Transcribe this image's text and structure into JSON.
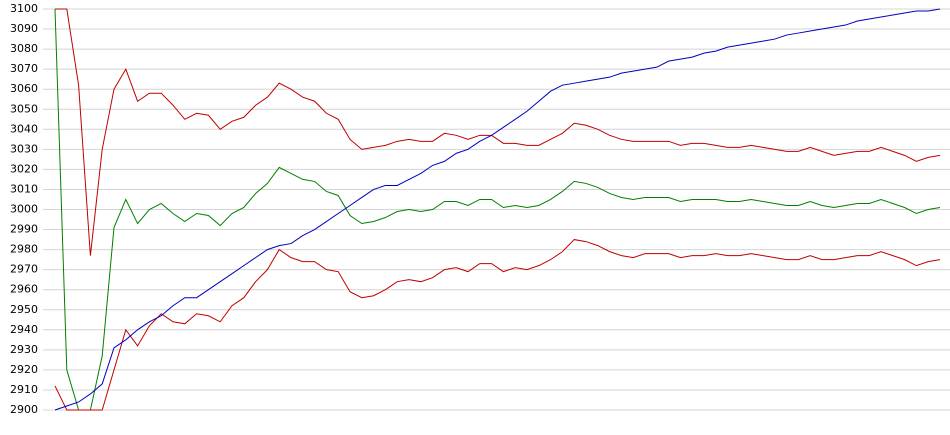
{
  "chart_data": {
    "type": "line",
    "categories": [
      null,
      null,
      null,
      null,
      null,
      null,
      null,
      null,
      null,
      null,
      null,
      null,
      null,
      null,
      null,
      null,
      null,
      null,
      null,
      null,
      null,
      null,
      null,
      null,
      null,
      null,
      null,
      null,
      null,
      null,
      null,
      null,
      null,
      null,
      null,
      null,
      null,
      null,
      null,
      null,
      null,
      null,
      null,
      null,
      null,
      null,
      null,
      null,
      null,
      null,
      null,
      null,
      null,
      null,
      null,
      null,
      null,
      null,
      null,
      null,
      null,
      null,
      null,
      null,
      null,
      null,
      null,
      null,
      null,
      null,
      null,
      null,
      null,
      null,
      null,
      null
    ],
    "series": [
      {
        "color": "#c00000",
        "values": [
          3100,
          3100,
          3062,
          2977,
          3030,
          3060,
          3070,
          3054,
          3058,
          3058,
          3052,
          3045,
          3048,
          3047,
          3040,
          3044,
          3046,
          3052,
          3056,
          3063,
          3060,
          3056,
          3054,
          3048,
          3045,
          3035,
          3030,
          3031,
          3032,
          3034,
          3035,
          3034,
          3034,
          3038,
          3037,
          3035,
          3037,
          3037,
          3033,
          3033,
          3032,
          3032,
          3035,
          3038,
          3043,
          3042,
          3040,
          3037,
          3035,
          3034,
          3034,
          3034,
          3034,
          3032,
          3033,
          3033,
          3032,
          3031,
          3031,
          3032,
          3031,
          3030,
          3029,
          3029,
          3031,
          3029,
          3027,
          3028,
          3029,
          3029,
          3031,
          3029,
          3027,
          3024,
          3026,
          3027
        ]
      },
      {
        "color": "#008000",
        "values": [
          3100,
          2920,
          2900,
          2900,
          2927,
          2991,
          3005,
          2993,
          3000,
          3003,
          2998,
          2994,
          2998,
          2997,
          2992,
          2998,
          3001,
          3008,
          3013,
          3021,
          3018,
          3015,
          3014,
          3009,
          3007,
          2997,
          2993,
          2994,
          2996,
          2999,
          3000,
          2999,
          3000,
          3004,
          3004,
          3002,
          3005,
          3005,
          3001,
          3002,
          3001,
          3002,
          3005,
          3009,
          3014,
          3013,
          3011,
          3008,
          3006,
          3005,
          3006,
          3006,
          3006,
          3004,
          3005,
          3005,
          3005,
          3004,
          3004,
          3005,
          3004,
          3003,
          3002,
          3002,
          3004,
          3002,
          3001,
          3002,
          3003,
          3003,
          3005,
          3003,
          3001,
          2998,
          3000,
          3001
        ]
      },
      {
        "color": "#c00000",
        "values": [
          2912,
          2900,
          2900,
          2900,
          2900,
          2920,
          2940,
          2932,
          2942,
          2948,
          2944,
          2943,
          2948,
          2947,
          2944,
          2952,
          2956,
          2964,
          2970,
          2980,
          2976,
          2974,
          2974,
          2970,
          2969,
          2959,
          2956,
          2957,
          2960,
          2964,
          2965,
          2964,
          2966,
          2970,
          2971,
          2969,
          2973,
          2973,
          2969,
          2971,
          2970,
          2972,
          2975,
          2979,
          2985,
          2984,
          2982,
          2979,
          2977,
          2976,
          2978,
          2978,
          2978,
          2976,
          2977,
          2977,
          2978,
          2977,
          2977,
          2978,
          2977,
          2976,
          2975,
          2975,
          2977,
          2975,
          2975,
          2976,
          2977,
          2977,
          2979,
          2977,
          2975,
          2972,
          2974,
          2975
        ]
      },
      {
        "color": "#0000c0",
        "values": [
          2900,
          2902,
          2904,
          2908,
          2913,
          2931,
          2935,
          2940,
          2944,
          2947,
          2952,
          2956,
          2956,
          2960,
          2964,
          2968,
          2972,
          2976,
          2980,
          2982,
          2983,
          2987,
          2990,
          2994,
          2998,
          3002,
          3006,
          3010,
          3012,
          3012,
          3015,
          3018,
          3022,
          3024,
          3028,
          3030,
          3034,
          3037,
          3041,
          3045,
          3049,
          3054,
          3059,
          3062,
          3063,
          3064,
          3065,
          3066,
          3068,
          3069,
          3070,
          3071,
          3074,
          3075,
          3076,
          3078,
          3079,
          3081,
          3082,
          3083,
          3084,
          3085,
          3087,
          3088,
          3089,
          3090,
          3091,
          3092,
          3094,
          3095,
          3096,
          3097,
          3098,
          3099,
          3099,
          3100
        ]
      }
    ],
    "ylim": [
      2900,
      3100
    ],
    "yticks": [
      2900,
      2910,
      2920,
      2930,
      2940,
      2950,
      2960,
      2970,
      2980,
      2990,
      3000,
      3010,
      3020,
      3030,
      3040,
      3050,
      3060,
      3070,
      3080,
      3090,
      3100
    ],
    "grid": true
  }
}
